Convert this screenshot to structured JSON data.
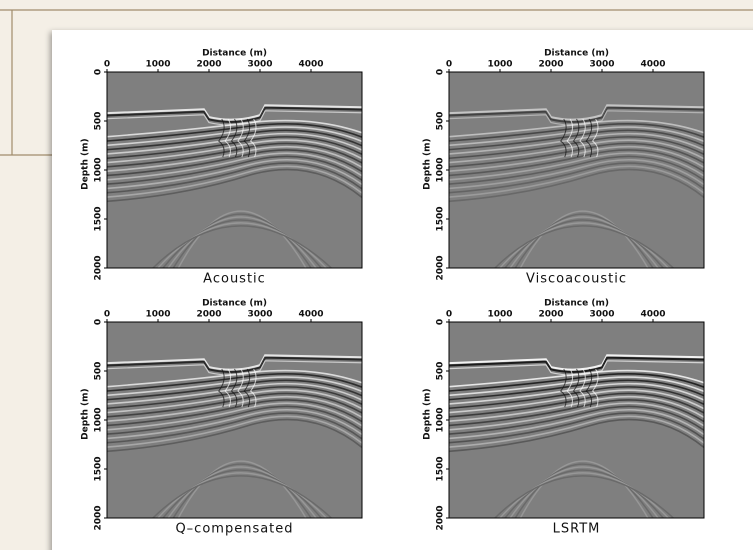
{
  "figure": {
    "panels": [
      {
        "x_label": "Distance (m)",
        "y_label": "Depth (m)",
        "caption": "Acoustic",
        "xlim": [
          0,
          5000
        ],
        "ylim": [
          0,
          2000
        ],
        "xticks": [
          0,
          1000,
          2000,
          3000,
          4000
        ],
        "yticks": [
          0,
          500,
          1000,
          1500,
          2000
        ]
      },
      {
        "x_label": "Distance (m)",
        "y_label": "Depth (m)",
        "caption": "Viscoacoustic",
        "xlim": [
          0,
          5000
        ],
        "ylim": [
          0,
          2000
        ],
        "xticks": [
          0,
          1000,
          2000,
          3000,
          4000
        ],
        "yticks": [
          0,
          500,
          1000,
          1500,
          2000
        ]
      },
      {
        "x_label": "Distance (m)",
        "y_label": "Depth (m)",
        "caption": "Q–compensated",
        "xlim": [
          0,
          5000
        ],
        "ylim": [
          0,
          2000
        ],
        "xticks": [
          0,
          1000,
          2000,
          3000,
          4000
        ],
        "yticks": [
          0,
          500,
          1000,
          1500,
          2000
        ]
      },
      {
        "x_label": "Distance (m)",
        "y_label": "Depth (m)",
        "caption": "LSRTM",
        "xlim": [
          0,
          5000
        ],
        "ylim": [
          0,
          2000
        ],
        "xticks": [
          0,
          1000,
          2000,
          3000,
          4000
        ],
        "yticks": [
          0,
          500,
          1000,
          1500,
          2000
        ]
      }
    ]
  }
}
